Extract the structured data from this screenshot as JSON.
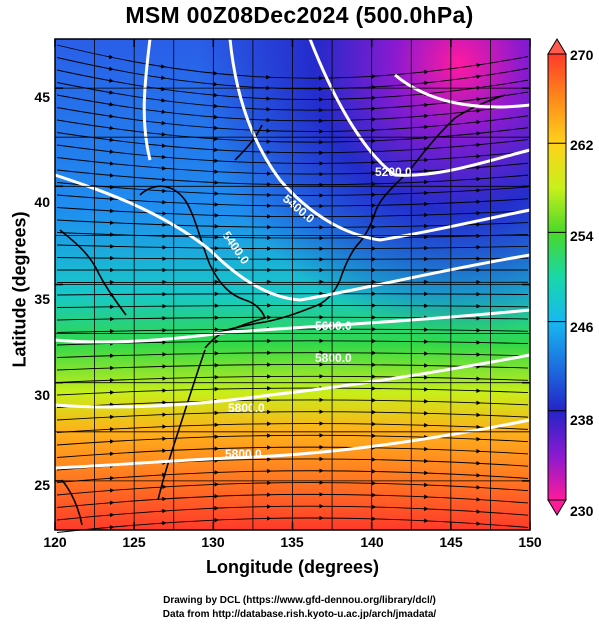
{
  "title": "MSM 00Z08Dec2024 (500.0hPa)",
  "x_axis": {
    "label": "Longitude (degrees)",
    "range": [
      120,
      150
    ],
    "ticks": [
      "120",
      "125",
      "130",
      "135",
      "140",
      "145",
      "150"
    ]
  },
  "y_axis": {
    "label": "Latitude  (degrees)",
    "range": [
      22.5,
      47.5
    ],
    "ticks": [
      "25",
      "30",
      "35",
      "40",
      "45"
    ]
  },
  "colorbar": {
    "range": [
      230,
      270
    ],
    "ticks": [
      "270",
      "262",
      "254",
      "246",
      "238",
      "230"
    ],
    "colors": [
      "#ff3a5a",
      "#ff4a2a",
      "#ff8a1a",
      "#ffd21a",
      "#c8f01a",
      "#4ad82a",
      "#18d8a8",
      "#18b8f0",
      "#1c70e0",
      "#2424c8",
      "#8a1ad0",
      "#ff1a9a"
    ]
  },
  "contours": [
    {
      "label": "5200.0"
    },
    {
      "label": "5400.0"
    },
    {
      "label": "5400.0"
    },
    {
      "label": "5600.0"
    },
    {
      "label": "5800.0"
    },
    {
      "label": "5800.0"
    },
    {
      "label": "5800.0"
    }
  ],
  "credits": [
    "Drawing by DCL (https://www.gfd-dennou.org/library/dcl/)",
    "Data from http://database.rish.kyoto-u.ac.jp/arch/jmadata/"
  ]
}
